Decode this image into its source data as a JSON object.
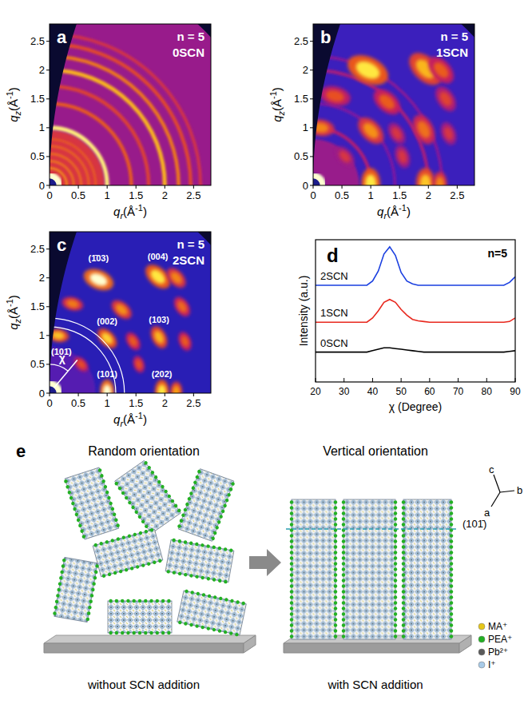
{
  "chart_data": [
    {
      "type": "giwaxs",
      "panel": "a",
      "annotations": [
        "n = 5",
        "0SCN"
      ],
      "xlabel": {
        "base": "q",
        "sub": "r",
        "unit": "(Å",
        "sup": "-1",
        "end": ")"
      },
      "ylabel": {
        "base": "q",
        "sub": "z",
        "unit": "(Å",
        "sup": "-1",
        "end": ")"
      },
      "xlim": [
        0,
        2.8
      ],
      "ylim": [
        0,
        2.8
      ],
      "xticks": [
        0,
        0.5,
        1,
        1.5,
        2,
        2.5
      ],
      "yticks": [
        0,
        0.5,
        1,
        1.5,
        2,
        2.5
      ],
      "background": 0.45,
      "rings": [
        {
          "q": 0.55,
          "width": 0.8,
          "intensity": 0.62
        },
        {
          "q": 0.1,
          "width": 0.25,
          "intensity": 1.0
        },
        {
          "q": 0.3,
          "width": 0.03,
          "intensity": 0.85
        },
        {
          "q": 0.42,
          "width": 0.03,
          "intensity": 0.8
        },
        {
          "q": 0.55,
          "width": 0.03,
          "intensity": 0.78
        },
        {
          "q": 0.68,
          "width": 0.03,
          "intensity": 0.76
        },
        {
          "q": 0.8,
          "width": 0.03,
          "intensity": 0.74
        },
        {
          "q": 1.0,
          "width": 0.07,
          "intensity": 0.97
        },
        {
          "q": 1.42,
          "width": 0.06,
          "intensity": 0.72
        },
        {
          "q": 1.72,
          "width": 0.06,
          "intensity": 0.66
        },
        {
          "q": 2.0,
          "width": 0.07,
          "intensity": 0.88
        },
        {
          "q": 2.24,
          "width": 0.06,
          "intensity": 0.78
        },
        {
          "q": 2.45,
          "width": 0.06,
          "intensity": 0.68
        },
        {
          "q": 2.62,
          "width": 0.05,
          "intensity": 0.62
        }
      ],
      "spots": []
    },
    {
      "type": "giwaxs",
      "panel": "b",
      "annotations": [
        "n = 5",
        "1SCN"
      ],
      "xlabel": {
        "base": "q",
        "sub": "r",
        "unit": "(Å",
        "sup": "-1",
        "end": ")"
      },
      "ylabel": {
        "base": "q",
        "sub": "z",
        "unit": "(Å",
        "sup": "-1",
        "end": ")"
      },
      "xlim": [
        0,
        2.8
      ],
      "ylim": [
        0,
        2.8
      ],
      "xticks": [
        0,
        0.5,
        1,
        1.5,
        2,
        2.5
      ],
      "yticks": [
        0,
        0.5,
        1,
        1.5,
        2,
        2.5
      ],
      "background": 0.27,
      "rings": [
        {
          "q": 0.5,
          "width": 0.6,
          "intensity": 0.45
        },
        {
          "q": 0.1,
          "width": 0.25,
          "intensity": 1.0
        },
        {
          "q": 1.0,
          "width": 0.06,
          "intensity": 0.5
        },
        {
          "q": 1.42,
          "width": 0.05,
          "intensity": 0.4
        },
        {
          "q": 2.0,
          "width": 0.06,
          "intensity": 0.48
        },
        {
          "q": 2.24,
          "width": 0.05,
          "intensity": 0.42
        }
      ],
      "spots": [
        {
          "qr": 0.95,
          "qz": 2.0,
          "intensity": 0.95,
          "width": 0.22
        },
        {
          "qr": 1.95,
          "qz": 2.02,
          "intensity": 0.88,
          "width": 0.2
        },
        {
          "qr": 2.22,
          "qz": 2.0,
          "intensity": 0.72,
          "width": 0.16
        },
        {
          "qr": 0.38,
          "qz": 1.55,
          "intensity": 0.7,
          "width": 0.16
        },
        {
          "qr": 1.28,
          "qz": 1.45,
          "intensity": 0.72,
          "width": 0.16
        },
        {
          "qr": 2.3,
          "qz": 1.5,
          "intensity": 0.66,
          "width": 0.14
        },
        {
          "qr": 0.13,
          "qz": 1.0,
          "intensity": 0.8,
          "width": 0.14
        },
        {
          "qr": 1.0,
          "qz": 0.95,
          "intensity": 0.82,
          "width": 0.16
        },
        {
          "qr": 1.45,
          "qz": 0.9,
          "intensity": 0.62,
          "width": 0.12
        },
        {
          "qr": 1.92,
          "qz": 0.97,
          "intensity": 0.76,
          "width": 0.16
        },
        {
          "qr": 2.35,
          "qz": 0.9,
          "intensity": 0.62,
          "width": 0.12
        },
        {
          "qr": 0.55,
          "qz": 0.5,
          "intensity": 0.62,
          "width": 0.12
        },
        {
          "qr": 1.55,
          "qz": 0.5,
          "intensity": 0.62,
          "width": 0.12
        },
        {
          "qr": 1.0,
          "qz": 0.03,
          "intensity": 0.95,
          "width": 0.16
        },
        {
          "qr": 1.95,
          "qz": 0.03,
          "intensity": 0.9,
          "width": 0.16
        },
        {
          "qr": 2.2,
          "qz": 0.03,
          "intensity": 0.8,
          "width": 0.12
        }
      ]
    },
    {
      "type": "giwaxs",
      "panel": "c",
      "annotations": [
        "n = 5",
        "2SCN"
      ],
      "xlabel": {
        "base": "q",
        "sub": "r",
        "unit": "(Å",
        "sup": "-1",
        "end": ")"
      },
      "ylabel": {
        "base": "q",
        "sub": "z",
        "unit": "(Å",
        "sup": "-1",
        "end": ")"
      },
      "xlim": [
        0,
        2.8
      ],
      "ylim": [
        0,
        2.8
      ],
      "xticks": [
        0,
        0.5,
        1,
        1.5,
        2,
        2.5
      ],
      "yticks": [
        0,
        0.5,
        1,
        1.5,
        2,
        2.5
      ],
      "background": 0.22,
      "rings": [
        {
          "q": 0.5,
          "width": 0.6,
          "intensity": 0.32
        },
        {
          "q": 0.1,
          "width": 0.25,
          "intensity": 1.0
        }
      ],
      "spots": [
        {
          "qr": 0.85,
          "qz": 1.97,
          "intensity": 1.0,
          "width": 0.16,
          "label": "(1̄03)"
        },
        {
          "qr": 1.88,
          "qz": 2.02,
          "intensity": 0.95,
          "width": 0.15,
          "label": "(004)"
        },
        {
          "qr": 2.2,
          "qz": 2.0,
          "intensity": 0.8,
          "width": 0.12
        },
        {
          "qr": 0.4,
          "qz": 1.55,
          "intensity": 0.78,
          "width": 0.11
        },
        {
          "qr": 1.25,
          "qz": 1.45,
          "intensity": 0.82,
          "width": 0.12
        },
        {
          "qr": 2.3,
          "qz": 1.5,
          "intensity": 0.75,
          "width": 0.11
        },
        {
          "qr": 0.15,
          "qz": 1.0,
          "intensity": 0.9,
          "width": 0.11,
          "label": "(101̄)"
        },
        {
          "qr": 1.0,
          "qz": 0.95,
          "intensity": 0.92,
          "width": 0.12,
          "label": "(002)"
        },
        {
          "qr": 1.45,
          "qz": 0.9,
          "intensity": 0.72,
          "width": 0.1
        },
        {
          "qr": 1.9,
          "qz": 0.97,
          "intensity": 0.88,
          "width": 0.12,
          "label": "(103)"
        },
        {
          "qr": 2.35,
          "qz": 0.9,
          "intensity": 0.72,
          "width": 0.1
        },
        {
          "qr": 0.55,
          "qz": 0.5,
          "intensity": 0.7,
          "width": 0.09
        },
        {
          "qr": 1.55,
          "qz": 0.5,
          "intensity": 0.7,
          "width": 0.09
        },
        {
          "qr": 1.0,
          "qz": 0.03,
          "intensity": 1.0,
          "width": 0.12,
          "label": "(101)"
        },
        {
          "qr": 1.95,
          "qz": 0.03,
          "intensity": 0.95,
          "width": 0.12,
          "label": "(202)"
        },
        {
          "qr": 2.2,
          "qz": 0.03,
          "intensity": 0.85,
          "width": 0.1
        }
      ],
      "integration_q": [
        1.15,
        1.3
      ],
      "chi_label": "χ",
      "chi_angle": 40
    },
    {
      "type": "line",
      "panel": "d",
      "annotations": [
        "n=5"
      ],
      "xlabel": "χ (Degree)",
      "ylabel": "Intensity (a.u.)",
      "xlim": [
        20,
        90
      ],
      "xticks": [
        20,
        30,
        40,
        50,
        60,
        70,
        80,
        90
      ],
      "ylim": [
        0,
        10
      ],
      "tick_labels": "x",
      "x": [
        20,
        22,
        24,
        26,
        28,
        30,
        32,
        34,
        36,
        38,
        40,
        42,
        44,
        46,
        48,
        50,
        52,
        54,
        56,
        58,
        60,
        62,
        64,
        66,
        68,
        70,
        72,
        74,
        76,
        78,
        80,
        82,
        84,
        86,
        88,
        90
      ],
      "series": [
        {
          "name": "2SCN",
          "color": "#1a3fe0",
          "values": [
            6.8,
            6.8,
            6.8,
            6.8,
            6.8,
            6.8,
            6.8,
            6.8,
            6.8,
            6.8,
            7.1,
            7.8,
            9.0,
            9.5,
            8.9,
            7.7,
            7.1,
            6.9,
            6.8,
            6.8,
            6.8,
            6.8,
            6.8,
            6.8,
            6.8,
            6.8,
            6.8,
            6.8,
            6.8,
            6.8,
            6.8,
            6.8,
            6.8,
            6.8,
            7.0,
            7.4
          ]
        },
        {
          "name": "1SCN",
          "color": "#e8281e",
          "values": [
            4.2,
            4.2,
            4.2,
            4.2,
            4.2,
            4.2,
            4.2,
            4.2,
            4.2,
            4.2,
            4.5,
            5.0,
            5.6,
            5.8,
            5.6,
            5.1,
            4.7,
            4.4,
            4.3,
            4.25,
            4.2,
            4.2,
            4.2,
            4.2,
            4.2,
            4.2,
            4.2,
            4.2,
            4.2,
            4.2,
            4.2,
            4.2,
            4.2,
            4.2,
            4.25,
            4.5
          ]
        },
        {
          "name": "0SCN",
          "color": "#000000",
          "values": [
            2.1,
            2.1,
            2.1,
            2.1,
            2.1,
            2.1,
            2.1,
            2.1,
            2.1,
            2.1,
            2.2,
            2.3,
            2.4,
            2.4,
            2.35,
            2.3,
            2.25,
            2.2,
            2.15,
            2.1,
            2.1,
            2.1,
            2.1,
            2.1,
            2.1,
            2.1,
            2.1,
            2.1,
            2.1,
            2.1,
            2.1,
            2.1,
            2.1,
            2.1,
            2.15,
            2.2
          ]
        }
      ]
    }
  ],
  "diagram": {
    "panel": "e",
    "left": {
      "title": "Random orientation",
      "caption": "without SCN addition"
    },
    "right": {
      "title": "Vertical orientation",
      "caption": "with SCN addition",
      "plane": "(101̄)"
    },
    "axes": [
      "c",
      "b",
      "a"
    ],
    "legend": [
      {
        "label": "MA⁺",
        "color": "#e6c619"
      },
      {
        "label": "PEA⁺",
        "color": "#22b022"
      },
      {
        "label": "Pb²⁺",
        "color": "#5a5a5a"
      },
      {
        "label": "I⁺",
        "color": "#a8cbe8"
      }
    ]
  }
}
